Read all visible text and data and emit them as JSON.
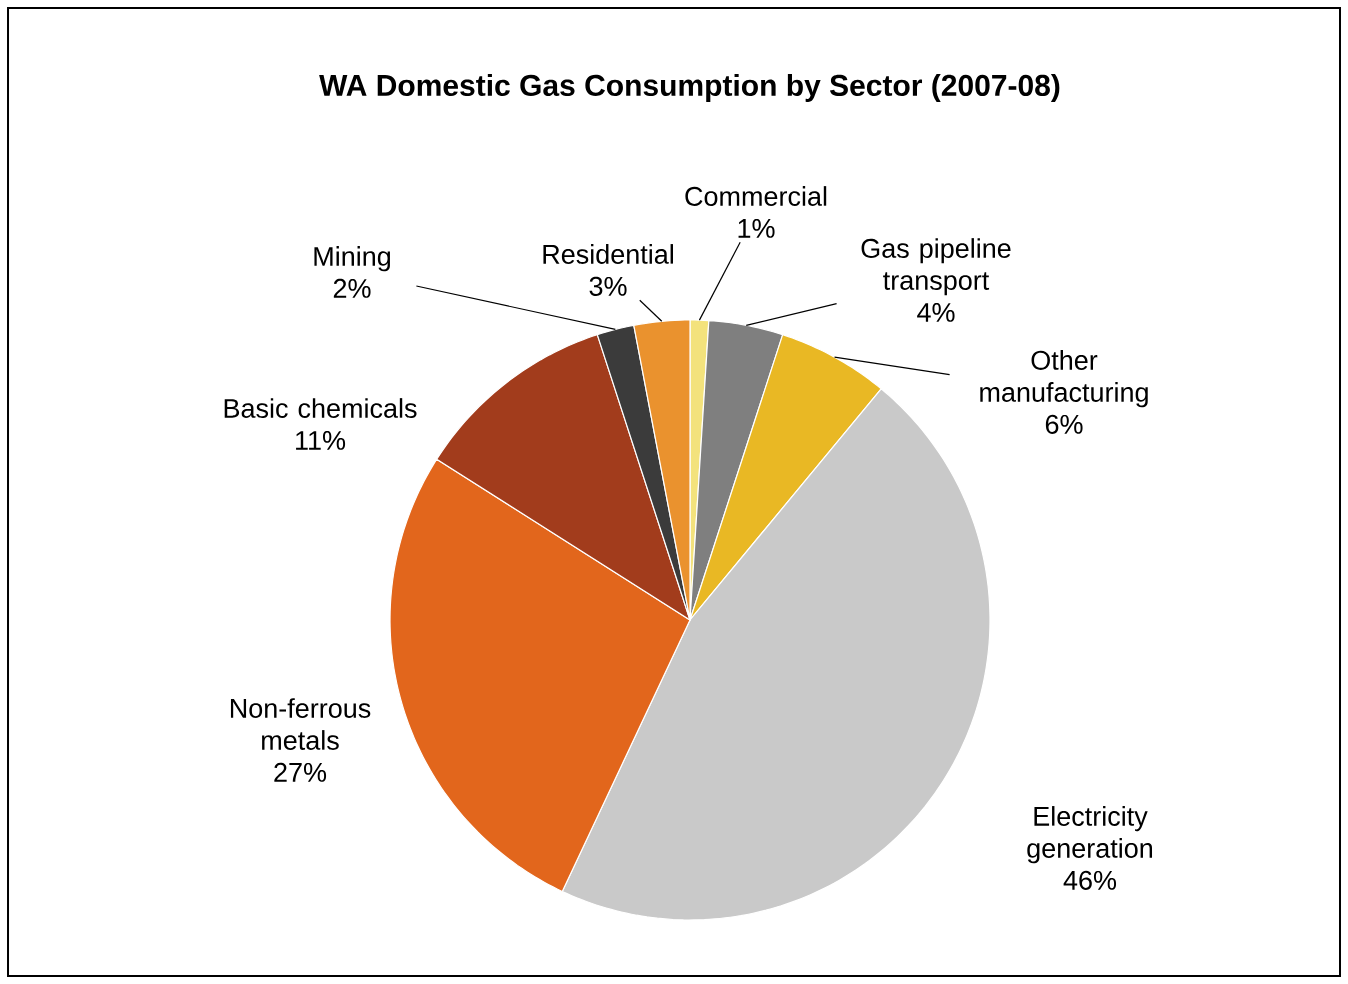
{
  "chart_data": {
    "type": "pie",
    "title": "WA Domestic Gas Consumption by Sector (2007-08)",
    "categories": [
      "Commercial",
      "Gas pipeline transport",
      "Other manufacturing",
      "Electricity generation",
      "Non-ferrous metals",
      "Basic chemicals",
      "Mining",
      "Residential"
    ],
    "values": [
      1,
      4,
      6,
      46,
      27,
      11,
      2,
      3
    ],
    "value_labels": [
      "1%",
      "4%",
      "6%",
      "46%",
      "27%",
      "11%",
      "2%",
      "3%"
    ],
    "colors": [
      "#f3e27c",
      "#7f7f7f",
      "#e9b824",
      "#c9c9c9",
      "#e2661c",
      "#a23c1c",
      "#3b3b3b",
      "#ea922e"
    ]
  }
}
